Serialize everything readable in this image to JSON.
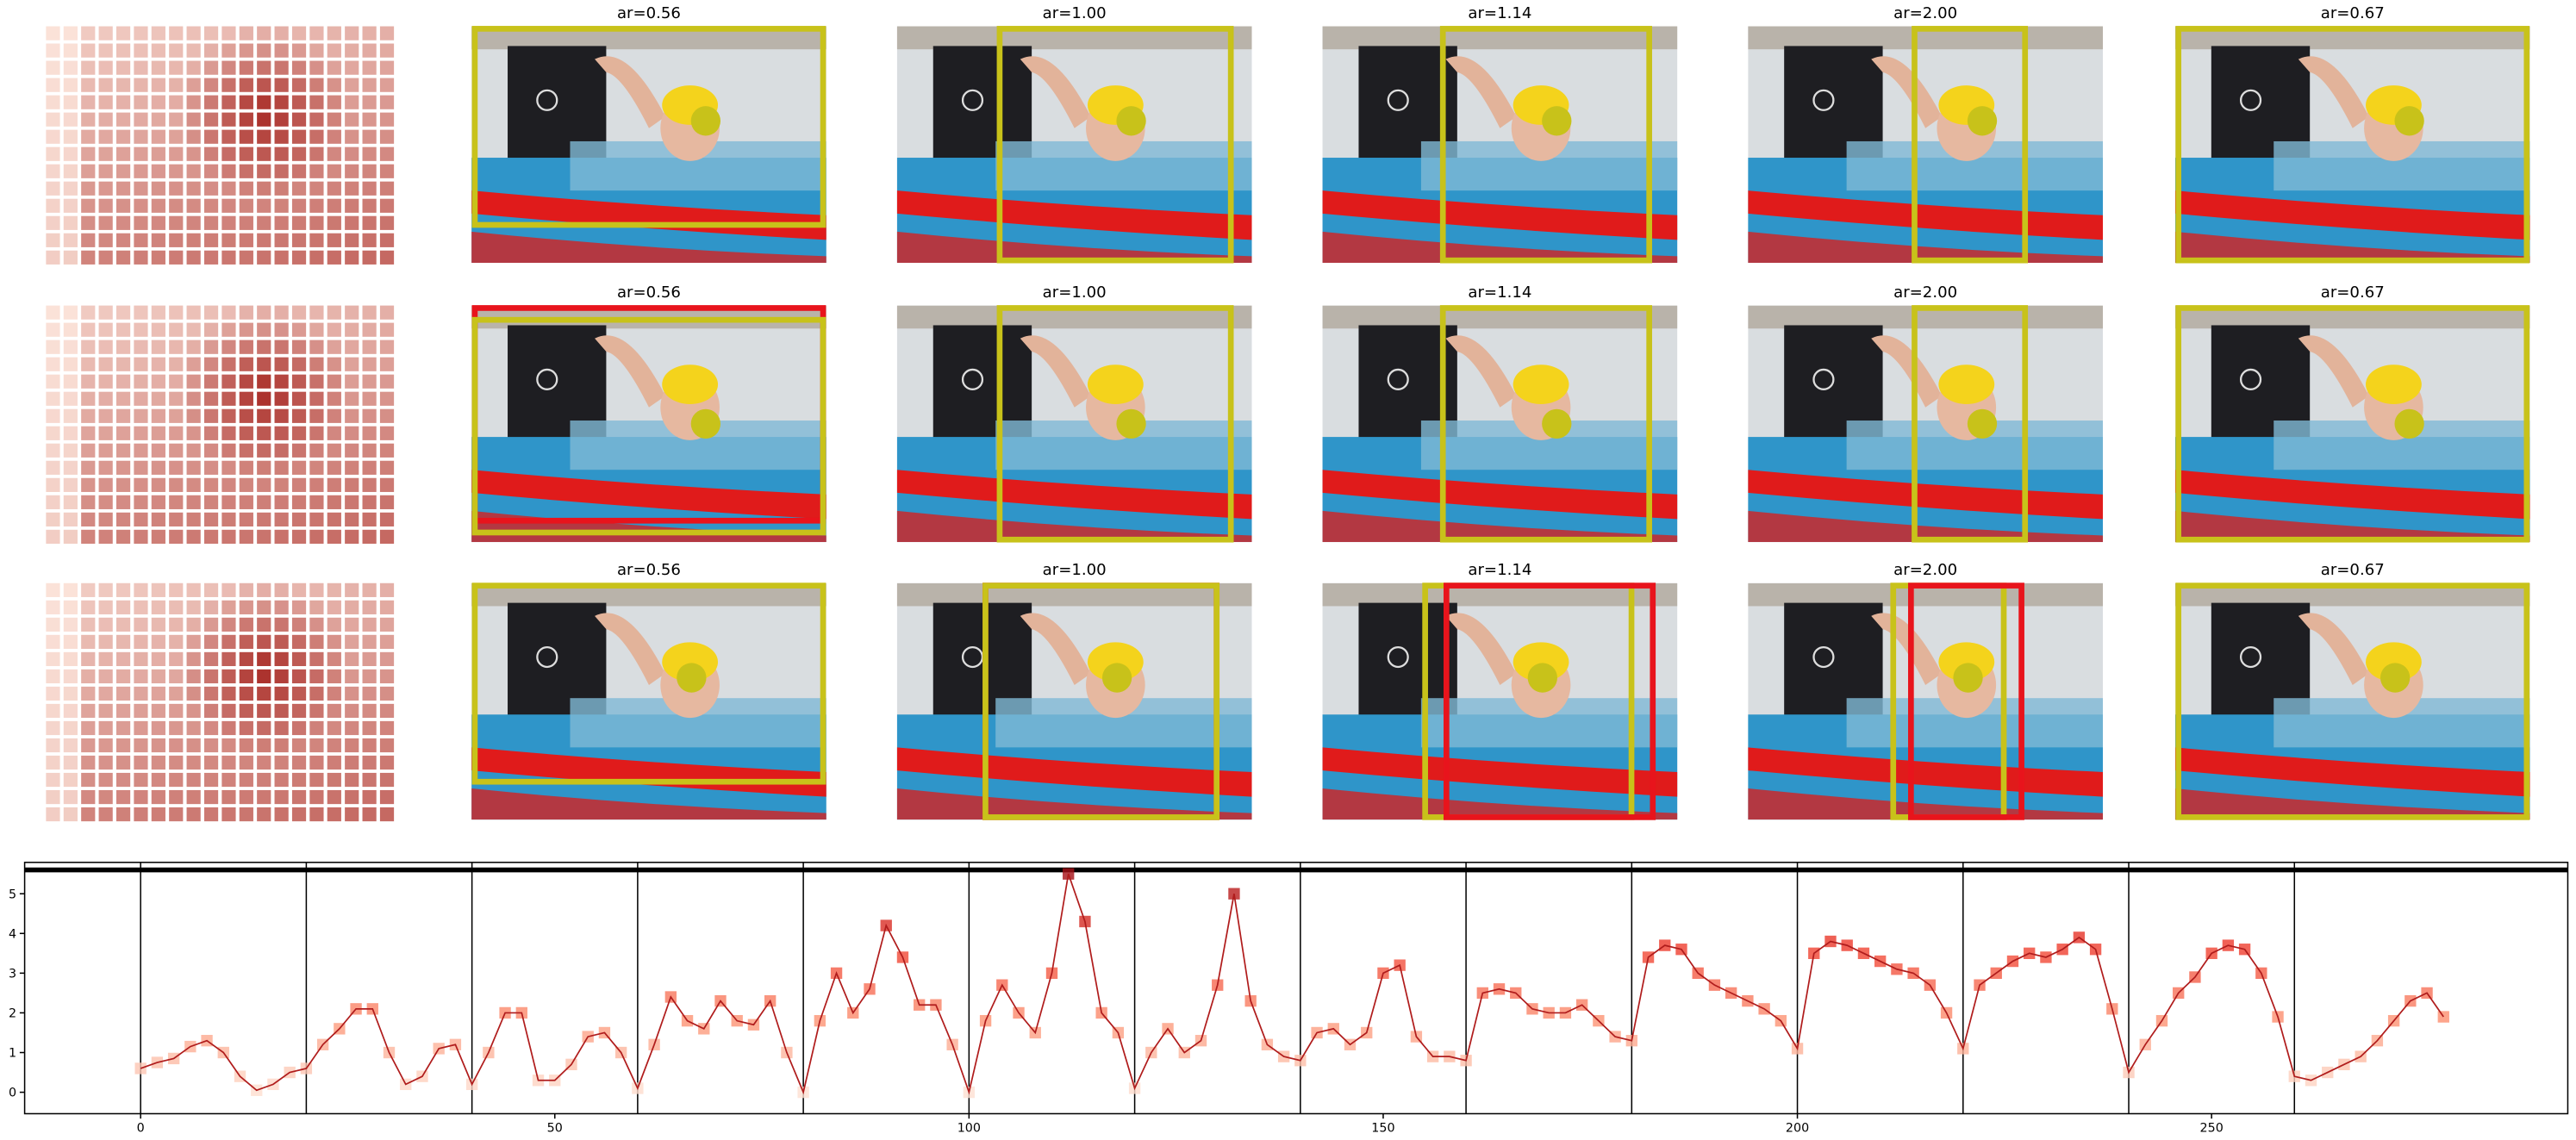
{
  "panel_grid": {
    "titles": [
      [
        "ar=0.56",
        "ar=1.00",
        "ar=1.14",
        "ar=2.00",
        "ar=0.67"
      ],
      [
        "ar=0.56",
        "ar=1.00",
        "ar=1.14",
        "ar=2.00",
        "ar=0.67"
      ],
      [
        "ar=0.56",
        "ar=1.00",
        "ar=1.14",
        "ar=2.00",
        "ar=0.67"
      ]
    ]
  },
  "chart_data": {
    "type": "line",
    "color": "#b01c1c",
    "marker_colormap": "Reds",
    "x": [
      0,
      2,
      4,
      6,
      8,
      10,
      12,
      14,
      16,
      18,
      20,
      22,
      24,
      26,
      28,
      30,
      32,
      34,
      36,
      38,
      40,
      42,
      44,
      46,
      48,
      50,
      52,
      54,
      56,
      58,
      60,
      62,
      64,
      66,
      68,
      70,
      72,
      74,
      76,
      78,
      80,
      82,
      84,
      86,
      88,
      90,
      92,
      94,
      96,
      98,
      100,
      102,
      104,
      106,
      108,
      110,
      112,
      114,
      116,
      118,
      120,
      122,
      124,
      126,
      128,
      130,
      132,
      134,
      136,
      138,
      140,
      142,
      144,
      146,
      148,
      150,
      152,
      154,
      156,
      158,
      160,
      162,
      164,
      166,
      168,
      170,
      172,
      174,
      176,
      178,
      180,
      182,
      184,
      186,
      188,
      190,
      192,
      194,
      196,
      198,
      200,
      202,
      204,
      206,
      208,
      210,
      212,
      214,
      216,
      218,
      220,
      222,
      224,
      226,
      228,
      230,
      232,
      234,
      236,
      238,
      240,
      242,
      244,
      246,
      248,
      250,
      252,
      254,
      256,
      258,
      260,
      262,
      264,
      266,
      268,
      270,
      272,
      274,
      276,
      278
    ],
    "values": [
      0.6,
      0.75,
      0.85,
      1.15,
      1.3,
      1.0,
      0.4,
      0.05,
      0.2,
      0.5,
      0.6,
      1.2,
      1.6,
      2.1,
      2.1,
      1.0,
      0.2,
      0.4,
      1.1,
      1.2,
      0.2,
      1.0,
      2.0,
      2.0,
      0.3,
      0.3,
      0.7,
      1.4,
      1.5,
      1.0,
      0.1,
      1.2,
      2.4,
      1.8,
      1.6,
      2.3,
      1.8,
      1.7,
      2.3,
      1.0,
      0.0,
      1.8,
      3.0,
      2.0,
      2.6,
      4.2,
      3.4,
      2.2,
      2.2,
      1.2,
      0.0,
      1.8,
      2.7,
      2.0,
      1.5,
      3.0,
      5.5,
      4.3,
      2.0,
      1.5,
      0.1,
      1.0,
      1.6,
      1.0,
      1.3,
      2.7,
      5.0,
      2.3,
      1.2,
      0.9,
      0.8,
      1.5,
      1.6,
      1.2,
      1.5,
      3.0,
      3.2,
      1.4,
      0.9,
      0.9,
      0.8,
      2.5,
      2.6,
      2.5,
      2.1,
      2.0,
      2.0,
      2.2,
      1.8,
      1.4,
      1.3,
      3.4,
      3.7,
      3.6,
      3.0,
      2.7,
      2.5,
      2.3,
      2.1,
      1.8,
      1.1,
      3.5,
      3.8,
      3.7,
      3.5,
      3.3,
      3.1,
      3.0,
      2.7,
      2.0,
      1.1,
      2.7,
      3.0,
      3.3,
      3.5,
      3.4,
      3.6,
      3.9,
      3.6,
      2.1,
      0.5,
      1.2,
      1.8,
      2.5,
      2.9,
      3.5,
      3.7,
      3.6,
      3.0,
      1.9,
      0.4,
      0.3,
      0.5,
      0.7,
      0.9,
      1.3,
      1.8,
      2.3,
      2.5,
      1.9
    ],
    "xlim": [
      -14,
      293
    ],
    "ylim": [
      -0.54,
      5.79
    ],
    "xticks": [
      0,
      50,
      100,
      150,
      200,
      250
    ],
    "yticks": [
      0,
      1,
      2,
      3,
      4,
      5
    ],
    "vlines": [
      0,
      20,
      40,
      60,
      80,
      100,
      120,
      140,
      160,
      180,
      200,
      220,
      240,
      260
    ],
    "hline": 5.6
  }
}
